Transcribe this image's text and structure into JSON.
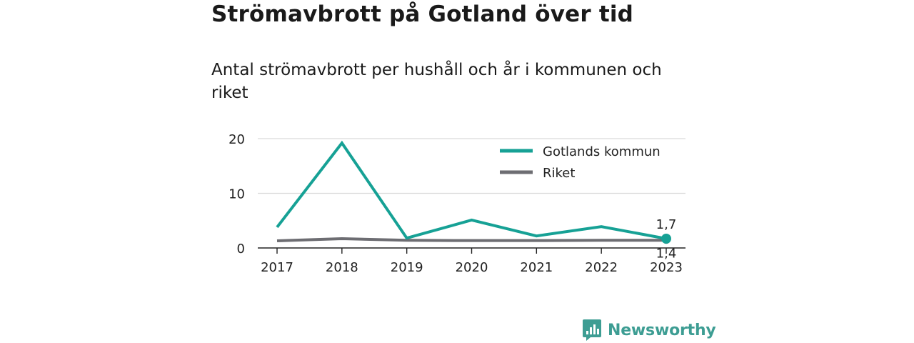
{
  "title": "Strömavbrott på Gotland över tid",
  "subtitle": "Antal strömavbrott per hushåll och år i kommunen och riket",
  "brand": "Newsworthy",
  "colors": {
    "gotland": "#16a195",
    "riket": "#6d6d72",
    "grid": "#d9d9d9",
    "axis": "#222222",
    "brand": "#3d9d93"
  },
  "chart_data": {
    "type": "line",
    "x": [
      "2017",
      "2018",
      "2019",
      "2020",
      "2021",
      "2022",
      "2023"
    ],
    "ylim": [
      0,
      20
    ],
    "yticks": [
      "0",
      "10",
      "20"
    ],
    "series": [
      {
        "name": "Gotlands kommun",
        "values": [
          3.8,
          19.2,
          1.8,
          5.1,
          2.2,
          3.9,
          1.7
        ]
      },
      {
        "name": "Riket",
        "values": [
          1.3,
          1.7,
          1.4,
          1.35,
          1.35,
          1.4,
          1.4
        ]
      }
    ],
    "end_labels": {
      "gotland": "1,7",
      "riket": "1,4"
    },
    "legend_position": "top-right",
    "grid": true
  }
}
